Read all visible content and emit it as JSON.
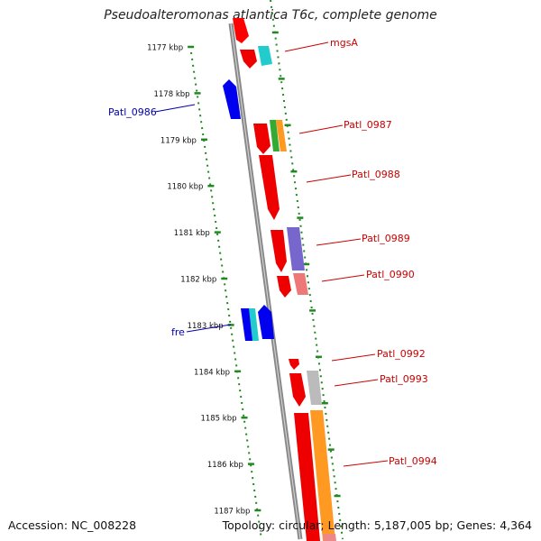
{
  "header": {
    "title": "Pseudoalteromonas atlantica T6c, complete genome"
  },
  "footer": {
    "accession": "Accession: NC_008228",
    "summary": "Topology: circular; Length: 5,187,005 bp; Genes: 4,364"
  },
  "ticks": [
    {
      "label": "1177 kbp"
    },
    {
      "label": "1178 kbp"
    },
    {
      "label": "1179 kbp"
    },
    {
      "label": "1180 kbp"
    },
    {
      "label": "1181 kbp"
    },
    {
      "label": "1182 kbp"
    },
    {
      "label": "1183 kbp"
    },
    {
      "label": "1184 kbp"
    },
    {
      "label": "1185 kbp"
    },
    {
      "label": "1186 kbp"
    },
    {
      "label": "1187 kbp"
    }
  ],
  "gene_labels": [
    {
      "text": "mgsA",
      "color": "#cc0000"
    },
    {
      "text": "Patl_0986",
      "color": "#0000aa"
    },
    {
      "text": "Patl_0987",
      "color": "#cc0000"
    },
    {
      "text": "Patl_0988",
      "color": "#cc0000"
    },
    {
      "text": "Patl_0989",
      "color": "#cc0000"
    },
    {
      "text": "Patl_0990",
      "color": "#cc0000"
    },
    {
      "text": "fre",
      "color": "#0000aa"
    },
    {
      "text": "Patl_0992",
      "color": "#cc0000"
    },
    {
      "text": "Patl_0993",
      "color": "#cc0000"
    },
    {
      "text": "Patl_0994",
      "color": "#cc0000"
    }
  ],
  "colors": {
    "backbone": "#888888",
    "tick": "#228822",
    "forward_gene": "#ff0000",
    "reverse_gene": "#0000ee",
    "cyan": "#22cccc",
    "orange": "#ff9922",
    "green": "#33aa33",
    "purple": "#7766cc",
    "pink": "#ee7777",
    "grey": "#bbbbbb"
  }
}
